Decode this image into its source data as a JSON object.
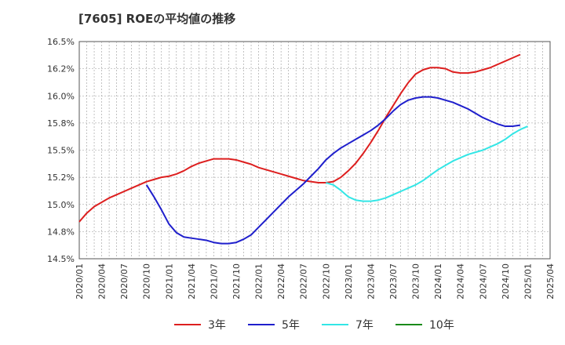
{
  "chart_data": {
    "type": "line",
    "title": "[7605]  ROEの平均値の推移",
    "xlabel": "",
    "ylabel": "",
    "ylim": [
      14.5,
      16.5
    ],
    "yticks": [
      "14.5%",
      "14.8%",
      "15.0%",
      "15.2%",
      "15.5%",
      "15.8%",
      "16.0%",
      "16.2%",
      "16.5%"
    ],
    "ytick_values": [
      14.5,
      14.75,
      15.0,
      15.25,
      15.5,
      15.75,
      16.0,
      16.25,
      16.5
    ],
    "xticks": [
      "2020/01",
      "2020/04",
      "2020/07",
      "2020/10",
      "2021/01",
      "2021/04",
      "2021/07",
      "2021/10",
      "2022/01",
      "2022/04",
      "2022/07",
      "2022/10",
      "2023/01",
      "2023/04",
      "2023/07",
      "2023/10",
      "2024/01",
      "2024/04",
      "2024/07",
      "2024/10",
      "2025/01",
      "2025/04"
    ],
    "grid": true,
    "legend": "bottom",
    "series": [
      {
        "name": "3年",
        "color": "#dd1f1f",
        "points": [
          [
            "2020/01",
            14.84
          ],
          [
            "2020/02",
            14.92
          ],
          [
            "2020/03",
            14.98
          ],
          [
            "2020/04",
            15.02
          ],
          [
            "2020/05",
            15.06
          ],
          [
            "2020/06",
            15.09
          ],
          [
            "2020/07",
            15.12
          ],
          [
            "2020/08",
            15.15
          ],
          [
            "2020/09",
            15.18
          ],
          [
            "2020/10",
            15.21
          ],
          [
            "2020/11",
            15.23
          ],
          [
            "2020/12",
            15.25
          ],
          [
            "2021/01",
            15.26
          ],
          [
            "2021/02",
            15.28
          ],
          [
            "2021/03",
            15.31
          ],
          [
            "2021/04",
            15.35
          ],
          [
            "2021/05",
            15.38
          ],
          [
            "2021/06",
            15.4
          ],
          [
            "2021/07",
            15.42
          ],
          [
            "2021/08",
            15.42
          ],
          [
            "2021/09",
            15.42
          ],
          [
            "2021/10",
            15.41
          ],
          [
            "2021/11",
            15.39
          ],
          [
            "2021/12",
            15.37
          ],
          [
            "2022/01",
            15.34
          ],
          [
            "2022/02",
            15.32
          ],
          [
            "2022/03",
            15.3
          ],
          [
            "2022/04",
            15.28
          ],
          [
            "2022/05",
            15.26
          ],
          [
            "2022/06",
            15.24
          ],
          [
            "2022/07",
            15.22
          ],
          [
            "2022/08",
            15.21
          ],
          [
            "2022/09",
            15.2
          ],
          [
            "2022/10",
            15.2
          ],
          [
            "2022/11",
            15.21
          ],
          [
            "2022/12",
            15.25
          ],
          [
            "2023/01",
            15.31
          ],
          [
            "2023/02",
            15.38
          ],
          [
            "2023/03",
            15.47
          ],
          [
            "2023/04",
            15.57
          ],
          [
            "2023/05",
            15.68
          ],
          [
            "2023/06",
            15.8
          ],
          [
            "2023/07",
            15.91
          ],
          [
            "2023/08",
            16.02
          ],
          [
            "2023/09",
            16.12
          ],
          [
            "2023/10",
            16.2
          ],
          [
            "2023/11",
            16.24
          ],
          [
            "2023/12",
            16.26
          ],
          [
            "2024/01",
            16.26
          ],
          [
            "2024/02",
            16.25
          ],
          [
            "2024/03",
            16.22
          ],
          [
            "2024/04",
            16.21
          ],
          [
            "2024/05",
            16.21
          ],
          [
            "2024/06",
            16.22
          ],
          [
            "2024/07",
            16.24
          ],
          [
            "2024/08",
            16.26
          ],
          [
            "2024/09",
            16.29
          ],
          [
            "2024/10",
            16.32
          ],
          [
            "2024/11",
            16.35
          ],
          [
            "2024/12",
            16.38
          ]
        ]
      },
      {
        "name": "5年",
        "color": "#1f1fcc",
        "points": [
          [
            "2020/10",
            15.18
          ],
          [
            "2020/11",
            15.07
          ],
          [
            "2020/12",
            14.95
          ],
          [
            "2021/01",
            14.82
          ],
          [
            "2021/02",
            14.74
          ],
          [
            "2021/03",
            14.7
          ],
          [
            "2021/04",
            14.69
          ],
          [
            "2021/05",
            14.68
          ],
          [
            "2021/06",
            14.67
          ],
          [
            "2021/07",
            14.65
          ],
          [
            "2021/08",
            14.64
          ],
          [
            "2021/09",
            14.64
          ],
          [
            "2021/10",
            14.65
          ],
          [
            "2021/11",
            14.68
          ],
          [
            "2021/12",
            14.72
          ],
          [
            "2022/01",
            14.79
          ],
          [
            "2022/02",
            14.86
          ],
          [
            "2022/03",
            14.93
          ],
          [
            "2022/04",
            15.0
          ],
          [
            "2022/05",
            15.07
          ],
          [
            "2022/06",
            15.13
          ],
          [
            "2022/07",
            15.19
          ],
          [
            "2022/08",
            15.26
          ],
          [
            "2022/09",
            15.33
          ],
          [
            "2022/10",
            15.41
          ],
          [
            "2022/11",
            15.47
          ],
          [
            "2022/12",
            15.52
          ],
          [
            "2023/01",
            15.56
          ],
          [
            "2023/02",
            15.6
          ],
          [
            "2023/03",
            15.64
          ],
          [
            "2023/04",
            15.68
          ],
          [
            "2023/05",
            15.73
          ],
          [
            "2023/06",
            15.79
          ],
          [
            "2023/07",
            15.86
          ],
          [
            "2023/08",
            15.92
          ],
          [
            "2023/09",
            15.96
          ],
          [
            "2023/10",
            15.98
          ],
          [
            "2023/11",
            15.99
          ],
          [
            "2023/12",
            15.99
          ],
          [
            "2024/01",
            15.98
          ],
          [
            "2024/02",
            15.96
          ],
          [
            "2024/03",
            15.94
          ],
          [
            "2024/04",
            15.91
          ],
          [
            "2024/05",
            15.88
          ],
          [
            "2024/06",
            15.84
          ],
          [
            "2024/07",
            15.8
          ],
          [
            "2024/08",
            15.77
          ],
          [
            "2024/09",
            15.74
          ],
          [
            "2024/10",
            15.72
          ],
          [
            "2024/11",
            15.72
          ],
          [
            "2024/12",
            15.73
          ]
        ]
      },
      {
        "name": "7年",
        "color": "#33e6e6",
        "points": [
          [
            "2022/10",
            15.2
          ],
          [
            "2022/11",
            15.18
          ],
          [
            "2022/12",
            15.13
          ],
          [
            "2023/01",
            15.07
          ],
          [
            "2023/02",
            15.04
          ],
          [
            "2023/03",
            15.03
          ],
          [
            "2023/04",
            15.03
          ],
          [
            "2023/05",
            15.04
          ],
          [
            "2023/06",
            15.06
          ],
          [
            "2023/07",
            15.09
          ],
          [
            "2023/08",
            15.12
          ],
          [
            "2023/09",
            15.15
          ],
          [
            "2023/10",
            15.18
          ],
          [
            "2023/11",
            15.22
          ],
          [
            "2023/12",
            15.27
          ],
          [
            "2024/01",
            15.32
          ],
          [
            "2024/02",
            15.36
          ],
          [
            "2024/03",
            15.4
          ],
          [
            "2024/04",
            15.43
          ],
          [
            "2024/05",
            15.46
          ],
          [
            "2024/06",
            15.48
          ],
          [
            "2024/07",
            15.5
          ],
          [
            "2024/08",
            15.53
          ],
          [
            "2024/09",
            15.56
          ],
          [
            "2024/10",
            15.6
          ],
          [
            "2024/11",
            15.65
          ],
          [
            "2024/12",
            15.69
          ],
          [
            "2025/01",
            15.72
          ]
        ]
      },
      {
        "name": "10年",
        "color": "#1a8a1a",
        "points": []
      }
    ]
  }
}
